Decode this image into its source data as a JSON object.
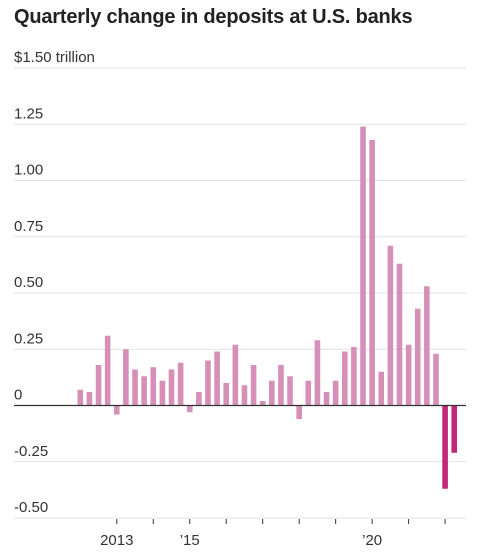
{
  "title": "Quarterly change in deposits at U.S. banks",
  "colors": {
    "positive": "#d690b8",
    "negative": "#c2257a",
    "grid": "#e2e2e2",
    "zero": "#333333"
  },
  "chart_data": {
    "type": "bar",
    "title": "Quarterly change in deposits at U.S. banks",
    "ylabel": "$1.50 trillion",
    "ylim": [
      -0.5,
      1.5
    ],
    "yticks": [
      {
        "value": 1.5,
        "label": "$1.50 trillion"
      },
      {
        "value": 1.25,
        "label": "1.25"
      },
      {
        "value": 1.0,
        "label": "1.00"
      },
      {
        "value": 0.75,
        "label": "0.75"
      },
      {
        "value": 0.5,
        "label": "0.50"
      },
      {
        "value": 0.25,
        "label": "0.25"
      },
      {
        "value": 0.0,
        "label": "0"
      },
      {
        "value": -0.25,
        "label": "-0.25"
      },
      {
        "value": -0.5,
        "label": "-0.50"
      }
    ],
    "xticks": [
      {
        "at": 4.5,
        "label": "2013"
      },
      {
        "at": 8.5,
        "label": ""
      },
      {
        "at": 12.5,
        "label": "’15"
      },
      {
        "at": 16.5,
        "label": ""
      },
      {
        "at": 20.5,
        "label": ""
      },
      {
        "at": 24.5,
        "label": ""
      },
      {
        "at": 28.5,
        "label": ""
      },
      {
        "at": 32.5,
        "label": "’20"
      },
      {
        "at": 36.5,
        "label": ""
      },
      {
        "at": 40.5,
        "label": ""
      }
    ],
    "grid": true,
    "series": [
      {
        "values": [
          0.07,
          0.06,
          0.18,
          0.31,
          -0.04,
          0.25,
          0.16,
          0.13,
          0.17,
          0.11,
          0.16,
          0.19,
          -0.03,
          0.06,
          0.2,
          0.24,
          0.1,
          0.27,
          0.09,
          0.18,
          0.02,
          0.11,
          0.18,
          0.13,
          -0.06,
          0.11,
          0.29,
          0.06,
          0.11,
          0.24,
          0.26,
          1.24,
          1.18,
          0.15,
          0.71,
          0.63,
          0.27,
          0.43,
          0.53,
          0.23,
          -0.37,
          -0.21
        ]
      }
    ]
  }
}
